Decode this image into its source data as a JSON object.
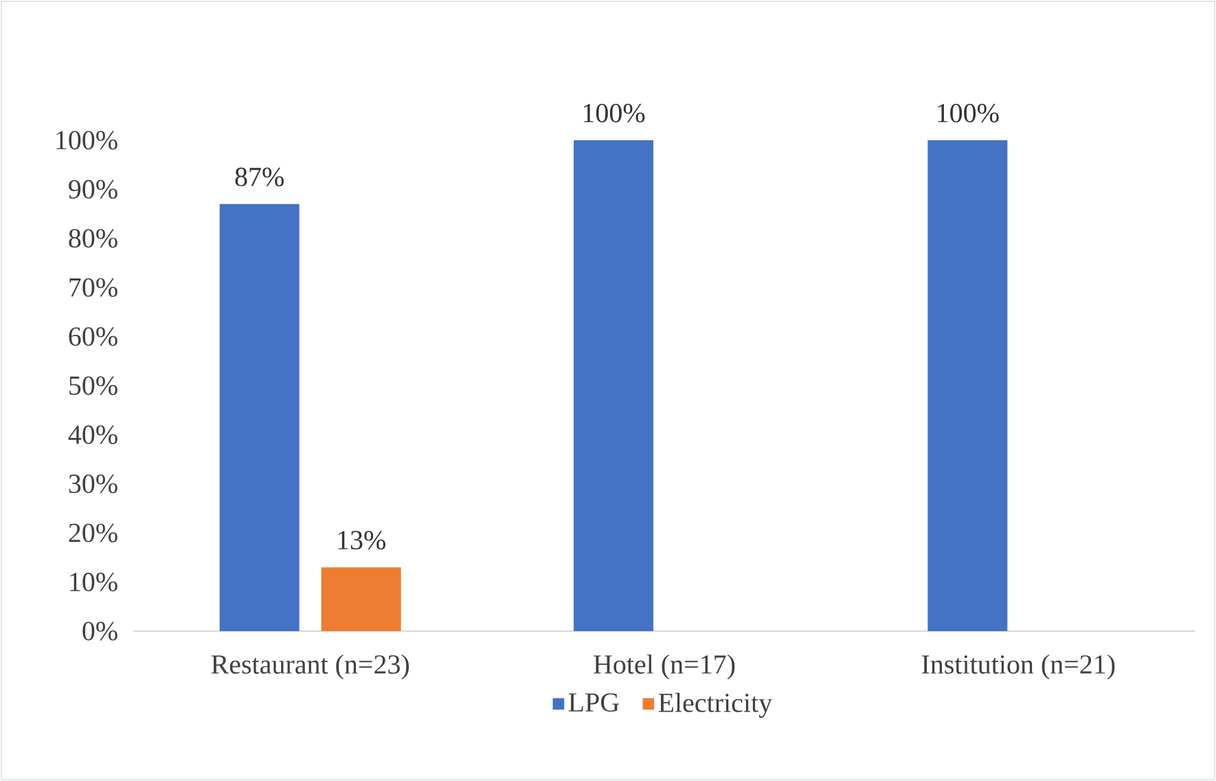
{
  "chart_data": {
    "type": "bar",
    "categories": [
      "Restaurant (n=23)",
      "Hotel (n=17)",
      "Institution (n=21)"
    ],
    "series": [
      {
        "name": "LPG",
        "color": "#4472c4",
        "values": [
          87,
          100,
          100
        ],
        "value_labels": [
          "87%",
          "100%",
          "100%"
        ]
      },
      {
        "name": "Electricity",
        "color": "#ed7d31",
        "values": [
          13,
          null,
          null
        ],
        "value_labels": [
          "13%",
          null,
          null
        ]
      }
    ],
    "ylim": [
      0,
      100
    ],
    "yticks": [
      {
        "value": 0,
        "label": "0%"
      },
      {
        "value": 10,
        "label": "10%"
      },
      {
        "value": 20,
        "label": "20%"
      },
      {
        "value": 30,
        "label": "30%"
      },
      {
        "value": 40,
        "label": "40%"
      },
      {
        "value": 50,
        "label": "50%"
      },
      {
        "value": 60,
        "label": "60%"
      },
      {
        "value": 70,
        "label": "70%"
      },
      {
        "value": 80,
        "label": "80%"
      },
      {
        "value": 90,
        "label": "90%"
      },
      {
        "value": 100,
        "label": "100%"
      }
    ],
    "grid": false,
    "legend": "bottom"
  }
}
